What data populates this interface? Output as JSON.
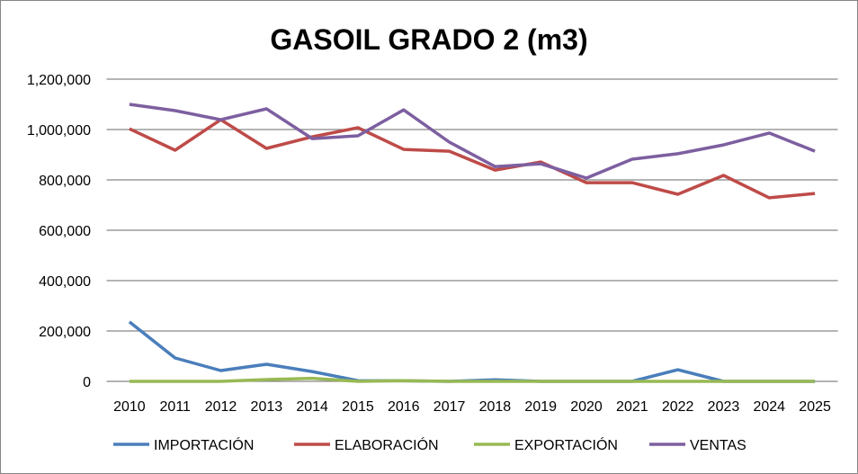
{
  "chart_data": {
    "type": "line",
    "title": "GASOIL GRADO 2 (m3)",
    "xlabel": "",
    "ylabel": "",
    "ylim": [
      0,
      1200000
    ],
    "yticks": [
      0,
      200000,
      400000,
      600000,
      800000,
      1000000,
      1200000
    ],
    "ytick_labels": [
      "0",
      "200,000",
      "400,000",
      "600,000",
      "800,000",
      "1,000,000",
      "1,200,000"
    ],
    "grid": true,
    "legend_position": "bottom",
    "categories": [
      "2010",
      "2011",
      "2012",
      "2013",
      "2014",
      "2015",
      "2016",
      "2017",
      "2018",
      "2019",
      "2020",
      "2021",
      "2022",
      "2023",
      "2024",
      "2025"
    ],
    "series": [
      {
        "name": "IMPORTACIÓN",
        "color": "#4a7ebb",
        "values": [
          236000,
          93000,
          43000,
          68000,
          39000,
          3000,
          2000,
          0,
          6000,
          0,
          0,
          0,
          46000,
          0,
          0,
          0
        ]
      },
      {
        "name": "ELABORACIÓN",
        "color": "#be4b48",
        "values": [
          1003000,
          918000,
          1039000,
          925000,
          971000,
          1007000,
          921000,
          914000,
          839000,
          871000,
          789000,
          789000,
          743000,
          818000,
          729000,
          746000
        ]
      },
      {
        "name": "EXPORTACIÓN",
        "color": "#98b954",
        "values": [
          0,
          0,
          0,
          7000,
          12000,
          0,
          3000,
          0,
          0,
          0,
          0,
          0,
          0,
          0,
          0,
          0
        ]
      },
      {
        "name": "VENTAS",
        "color": "#7d5fa0",
        "values": [
          1100000,
          1075000,
          1039000,
          1082000,
          964000,
          975000,
          1078000,
          950000,
          853000,
          864000,
          807000,
          882000,
          904000,
          939000,
          986000,
          914000
        ]
      }
    ]
  }
}
